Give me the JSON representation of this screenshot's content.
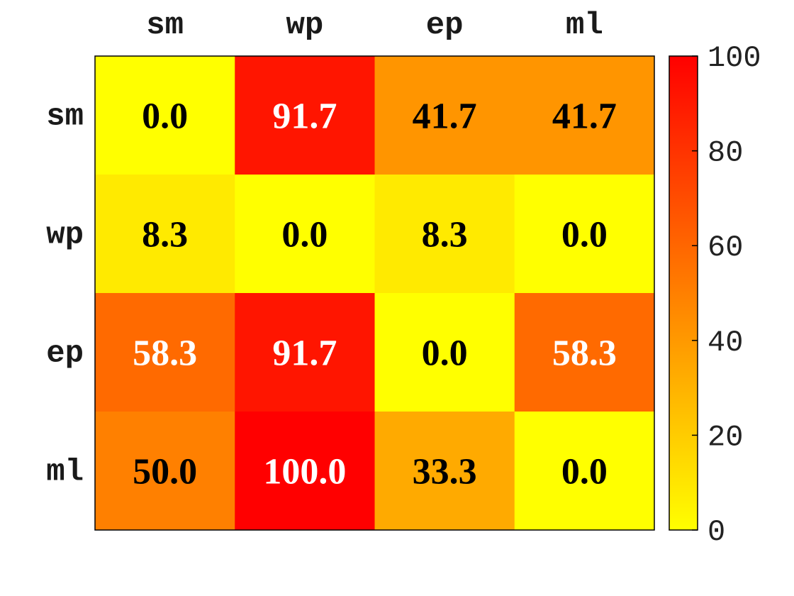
{
  "chart_data": {
    "type": "heatmap",
    "x_categories": [
      "sm",
      "wp",
      "ep",
      "ml"
    ],
    "y_categories": [
      "sm",
      "wp",
      "ep",
      "ml"
    ],
    "values": [
      [
        0.0,
        91.7,
        41.7,
        41.7
      ],
      [
        8.3,
        0.0,
        8.3,
        0.0
      ],
      [
        58.3,
        91.7,
        0.0,
        58.3
      ],
      [
        50.0,
        100.0,
        33.3,
        0.0
      ]
    ],
    "value_labels": [
      [
        "0.0",
        "91.7",
        "41.7",
        "41.7"
      ],
      [
        "8.3",
        "0.0",
        "8.3",
        "0.0"
      ],
      [
        "58.3",
        "91.7",
        "0.0",
        "58.3"
      ],
      [
        "50.0",
        "100.0",
        "33.3",
        "0.0"
      ]
    ],
    "colormap": "autumn (reversed: yellow to red)",
    "color_low": "#ffff00",
    "color_high": "#ff0000",
    "label_color_dark": "#000000",
    "label_color_light": "#ffffff",
    "colorbar": {
      "range": [
        0,
        100
      ],
      "ticks": [
        0,
        20,
        40,
        60,
        80,
        100
      ],
      "tick_labels": [
        "0",
        "20",
        "40",
        "60",
        "80",
        "100"
      ],
      "placement": "right"
    },
    "x_label_position": "top",
    "title": "",
    "xlabel": "",
    "ylabel": ""
  }
}
